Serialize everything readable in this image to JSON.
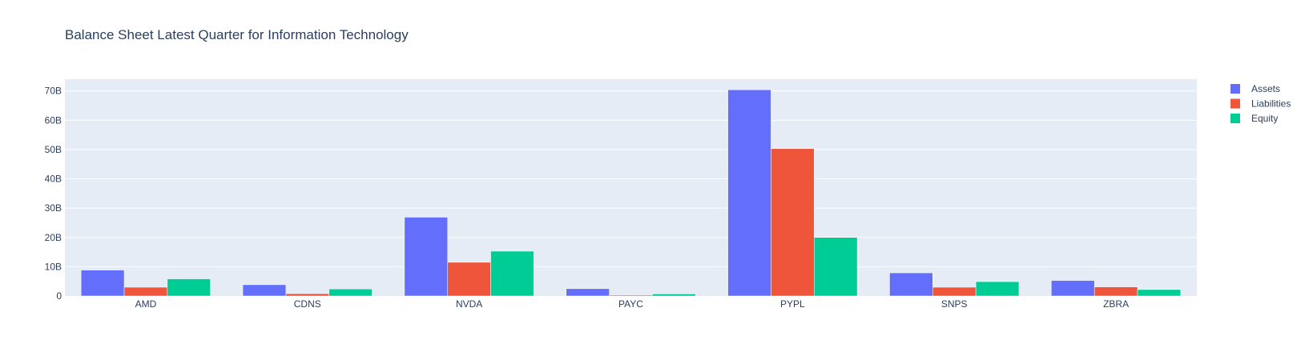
{
  "chart_data": {
    "type": "bar",
    "title": "Balance Sheet Latest Quarter for Information Technology",
    "xlabel": "",
    "ylabel": "",
    "categories": [
      "AMD",
      "CDNS",
      "NVDA",
      "PAYC",
      "PYPL",
      "SNPS",
      "ZBRA"
    ],
    "series": [
      {
        "name": "Assets",
        "color": "#636efa",
        "values": [
          8.85,
          3.85,
          26.9,
          2.5,
          70.4,
          7.9,
          5.3
        ]
      },
      {
        "name": "Liabilities",
        "color": "#ef553b",
        "values": [
          3.0,
          0.8,
          11.5,
          0.3,
          50.3,
          3.0,
          3.1
        ]
      },
      {
        "name": "Equity",
        "color": "#00cc96",
        "values": [
          5.85,
          2.4,
          15.3,
          0.7,
          20.0,
          4.9,
          2.2
        ]
      }
    ],
    "yticks": [
      0,
      10,
      20,
      30,
      40,
      50,
      60,
      70
    ],
    "ytick_labels": [
      "0",
      "10B",
      "20B",
      "30B",
      "40B",
      "50B",
      "60B",
      "70B"
    ],
    "ylim": [
      0,
      74
    ],
    "grid": true,
    "legend": "top-right",
    "colors": {
      "plot_bg": "#e5ecf6",
      "text": "#2a3f5f",
      "grid": "#ffffff"
    }
  }
}
